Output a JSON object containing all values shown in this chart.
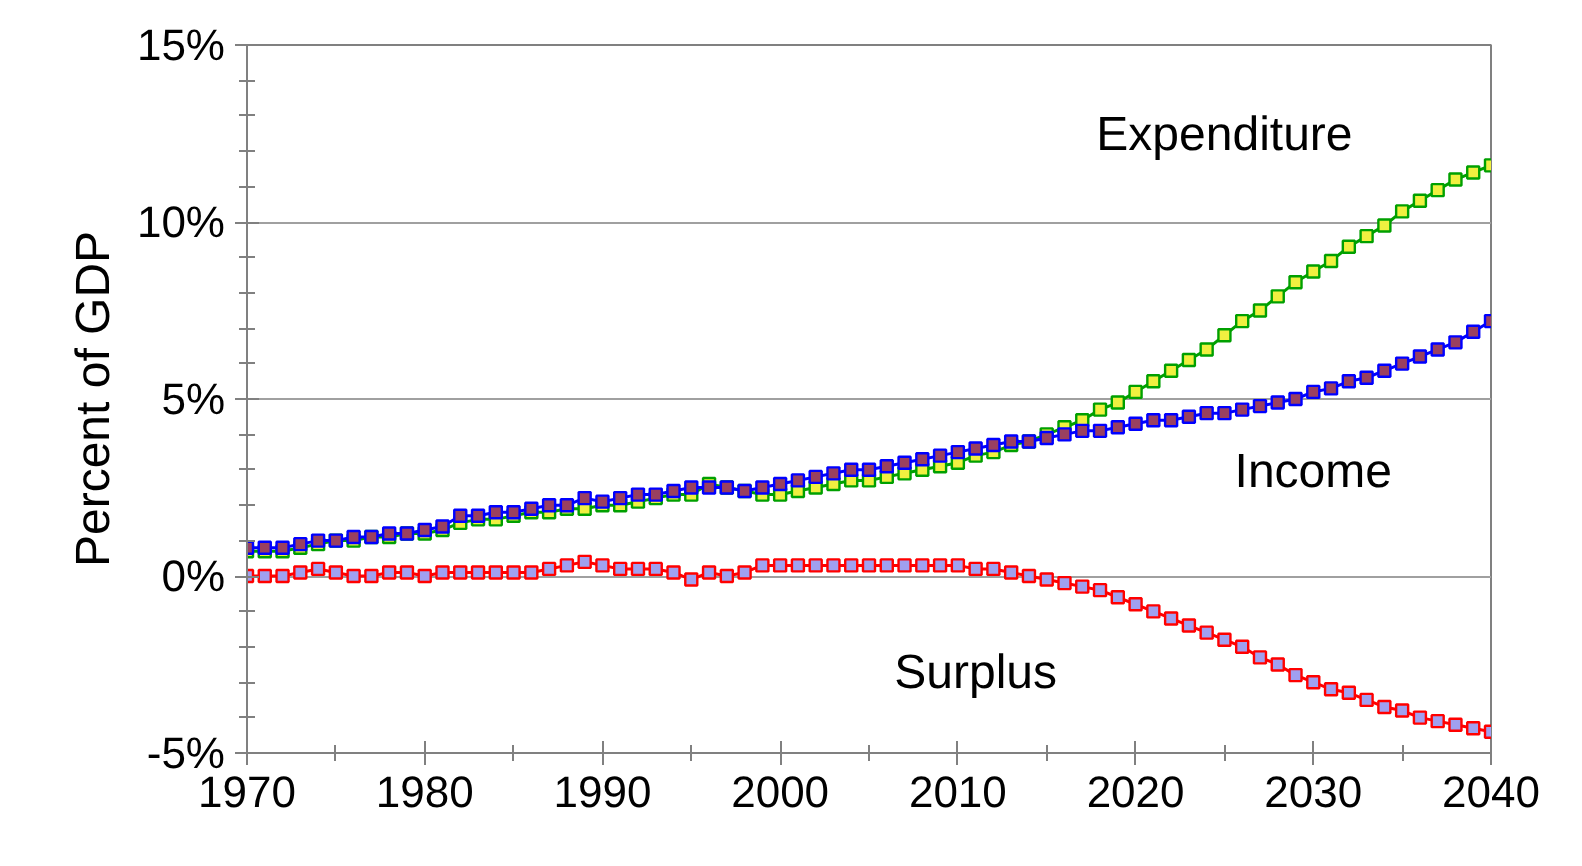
{
  "chart_data": {
    "type": "line",
    "ylabel": "Percent of GDP",
    "marker": "square",
    "grid": "y",
    "x": [
      1970,
      1971,
      1972,
      1973,
      1974,
      1975,
      1976,
      1977,
      1978,
      1979,
      1980,
      1981,
      1982,
      1983,
      1984,
      1985,
      1986,
      1987,
      1988,
      1989,
      1990,
      1991,
      1992,
      1993,
      1994,
      1995,
      1996,
      1997,
      1998,
      1999,
      2000,
      2001,
      2002,
      2003,
      2004,
      2005,
      2006,
      2007,
      2008,
      2009,
      2010,
      2011,
      2012,
      2013,
      2014,
      2015,
      2016,
      2017,
      2018,
      2019,
      2020,
      2021,
      2022,
      2023,
      2024,
      2025,
      2026,
      2027,
      2028,
      2029,
      2030,
      2031,
      2032,
      2033,
      2034,
      2035,
      2036,
      2037,
      2038,
      2039,
      2040
    ],
    "xlim": [
      1970,
      2040
    ],
    "xticks": [
      1970,
      {
        "value": 1975,
        "label": null
      },
      1980,
      {
        "value": 1985,
        "label": null
      },
      1990,
      {
        "value": 1995,
        "label": null
      },
      2000,
      {
        "value": 2005,
        "label": null
      },
      2010,
      {
        "value": 2015,
        "label": null
      },
      2020,
      {
        "value": 2025,
        "label": null
      },
      2030,
      {
        "value": 2035,
        "label": null
      },
      2040
    ],
    "ylim": [
      -5,
      15
    ],
    "yticks": [
      {
        "value": -5,
        "label": "-5%"
      },
      {
        "value": -4,
        "label": null
      },
      {
        "value": -3,
        "label": null
      },
      {
        "value": -2,
        "label": null
      },
      {
        "value": -1,
        "label": null
      },
      {
        "value": 0,
        "label": "0%"
      },
      {
        "value": 1,
        "label": null
      },
      {
        "value": 2,
        "label": null
      },
      {
        "value": 3,
        "label": null
      },
      {
        "value": 4,
        "label": null
      },
      {
        "value": 5,
        "label": "5%"
      },
      {
        "value": 6,
        "label": null
      },
      {
        "value": 7,
        "label": null
      },
      {
        "value": 8,
        "label": null
      },
      {
        "value": 9,
        "label": null
      },
      {
        "value": 10,
        "label": "10%"
      },
      {
        "value": 11,
        "label": null
      },
      {
        "value": 12,
        "label": null
      },
      {
        "value": 13,
        "label": null
      },
      {
        "value": 14,
        "label": null
      },
      {
        "value": 15,
        "label": "15%"
      }
    ],
    "series": [
      {
        "name": "Expenditure",
        "color": "#00a000",
        "values": [
          0.7,
          0.7,
          0.7,
          0.8,
          0.9,
          1.0,
          1.0,
          1.1,
          1.1,
          1.2,
          1.2,
          1.3,
          1.5,
          1.6,
          1.6,
          1.7,
          1.8,
          1.8,
          1.9,
          1.9,
          2.0,
          2.0,
          2.1,
          2.2,
          2.3,
          2.3,
          2.6,
          2.5,
          2.4,
          2.3,
          2.3,
          2.4,
          2.5,
          2.6,
          2.7,
          2.7,
          2.8,
          2.9,
          3.0,
          3.1,
          3.2,
          3.4,
          3.5,
          3.7,
          3.8,
          4.0,
          4.2,
          4.4,
          4.7,
          4.9,
          5.2,
          5.5,
          5.8,
          6.1,
          6.4,
          6.8,
          7.2,
          7.5,
          7.9,
          8.3,
          8.6,
          8.9,
          9.3,
          9.6,
          9.9,
          10.3,
          10.6,
          10.9,
          11.2,
          11.4,
          11.6
        ]
      },
      {
        "name": "Income",
        "color": "#0000ff",
        "values": [
          0.8,
          0.8,
          0.8,
          0.9,
          1.0,
          1.0,
          1.1,
          1.1,
          1.2,
          1.2,
          1.3,
          1.4,
          1.7,
          1.7,
          1.8,
          1.8,
          1.9,
          2.0,
          2.0,
          2.2,
          2.1,
          2.2,
          2.3,
          2.3,
          2.4,
          2.5,
          2.5,
          2.5,
          2.4,
          2.5,
          2.6,
          2.7,
          2.8,
          2.9,
          3.0,
          3.0,
          3.1,
          3.2,
          3.3,
          3.4,
          3.5,
          3.6,
          3.7,
          3.8,
          3.8,
          3.9,
          4.0,
          4.1,
          4.1,
          4.2,
          4.3,
          4.4,
          4.4,
          4.5,
          4.6,
          4.6,
          4.7,
          4.8,
          4.9,
          5.0,
          5.2,
          5.3,
          5.5,
          5.6,
          5.8,
          6.0,
          6.2,
          6.4,
          6.6,
          6.9,
          7.2
        ]
      },
      {
        "name": "Surplus",
        "color": "#ff0000",
        "values": [
          0.0,
          0.0,
          0.0,
          0.1,
          0.2,
          0.1,
          0.0,
          0.0,
          0.1,
          0.1,
          0.0,
          0.1,
          0.1,
          0.1,
          0.1,
          0.1,
          0.1,
          0.2,
          0.3,
          0.4,
          0.3,
          0.2,
          0.2,
          0.2,
          0.1,
          -0.1,
          0.1,
          0.0,
          0.1,
          0.3,
          0.3,
          0.3,
          0.3,
          0.3,
          0.3,
          0.3,
          0.3,
          0.3,
          0.3,
          0.3,
          0.3,
          0.2,
          0.2,
          0.1,
          0.0,
          -0.1,
          -0.2,
          -0.3,
          -0.4,
          -0.6,
          -0.8,
          -1.0,
          -1.2,
          -1.4,
          -1.6,
          -1.8,
          -2.0,
          -2.3,
          -2.5,
          -2.8,
          -3.0,
          -3.2,
          -3.3,
          -3.5,
          -3.7,
          -3.8,
          -4.0,
          -4.1,
          -4.2,
          -4.3,
          -4.4
        ]
      }
    ]
  }
}
